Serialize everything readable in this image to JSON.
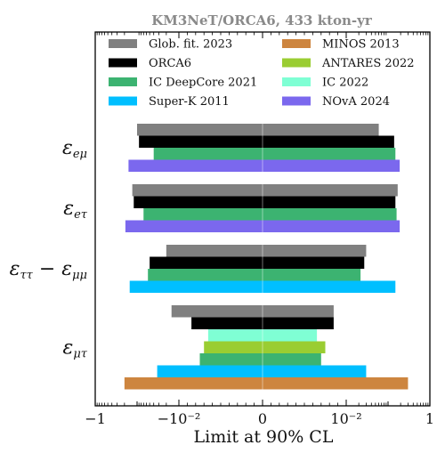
{
  "chart_data": {
    "type": "bar",
    "orientation": "horizontal",
    "title": "KM3NeT/ORCA6, 433 kton-yr",
    "xlabel": "Limit at 90% CL",
    "x_scale": "symlog",
    "xlim": [
      -1,
      1
    ],
    "x_ticks": [
      {
        "value": -1,
        "label": "−1"
      },
      {
        "value": -0.01,
        "label": "−10⁻²"
      },
      {
        "value": 0,
        "label": "0"
      },
      {
        "value": 0.01,
        "label": "10⁻²"
      },
      {
        "value": 1,
        "label": "1"
      }
    ],
    "grid": false,
    "legend_position": "top",
    "series": [
      {
        "name": "Glob. fit. 2023",
        "color": "#808080"
      },
      {
        "name": "ORCA6",
        "color": "#000000"
      },
      {
        "name": "IC DeepCore 2021",
        "color": "#3cb371"
      },
      {
        "name": "Super-K 2011",
        "color": "#00bfff"
      },
      {
        "name": "MINOS 2013",
        "color": "#cd853f"
      },
      {
        "name": "ANTARES 2022",
        "color": "#9acd32"
      },
      {
        "name": "IC 2022",
        "color": "#7fffd4"
      },
      {
        "name": "NOvA 2024",
        "color": "#7b68ee"
      }
    ],
    "groups": [
      {
        "label": "ε_eμ",
        "label_main": "ε",
        "label_sub": "eμ",
        "bars": [
          {
            "series": "Glob. fit. 2023",
            "low": -0.1,
            "high": 0.06
          },
          {
            "series": "ORCA6",
            "low": -0.09,
            "high": 0.14
          },
          {
            "series": "IC DeepCore 2021",
            "low": -0.04,
            "high": 0.15
          },
          {
            "series": "NOvA 2024",
            "low": -0.16,
            "high": 0.19
          }
        ]
      },
      {
        "label": "ε_eτ",
        "label_main": "ε",
        "label_sub": "eτ",
        "bars": [
          {
            "series": "Glob. fit. 2023",
            "low": -0.13,
            "high": 0.17
          },
          {
            "series": "ORCA6",
            "low": -0.12,
            "high": 0.15
          },
          {
            "series": "IC DeepCore 2021",
            "low": -0.07,
            "high": 0.16
          },
          {
            "series": "NOvA 2024",
            "low": -0.19,
            "high": 0.19
          }
        ]
      },
      {
        "label": "ε_ττ − ε_μμ",
        "label_main": "ε",
        "label_sub": "ττ",
        "label_mid": " − ε",
        "label_sub2": "μμ",
        "bars": [
          {
            "series": "Glob. fit. 2023",
            "low": -0.02,
            "high": 0.03
          },
          {
            "series": "ORCA6",
            "low": -0.05,
            "high": 0.027
          },
          {
            "series": "IC DeepCore 2021",
            "low": -0.055,
            "high": 0.022
          },
          {
            "series": "Super-K 2011",
            "low": -0.15,
            "high": 0.15
          }
        ]
      },
      {
        "label": "ε_μτ",
        "label_main": "ε",
        "label_sub": "μτ",
        "bars": [
          {
            "series": "Glob. fit. 2023",
            "low": -0.015,
            "high": 0.0085
          },
          {
            "series": "ORCA6",
            "low": -0.0085,
            "high": 0.0085
          },
          {
            "series": "IC 2022",
            "low": -0.0065,
            "high": 0.0065
          },
          {
            "series": "ANTARES 2022",
            "low": -0.007,
            "high": 0.0075
          },
          {
            "series": "IC DeepCore 2021",
            "low": -0.0075,
            "high": 0.007
          },
          {
            "series": "Super-K 2011",
            "low": -0.033,
            "high": 0.03
          },
          {
            "series": "MINOS 2013",
            "low": -0.2,
            "high": 0.3
          }
        ]
      }
    ]
  }
}
